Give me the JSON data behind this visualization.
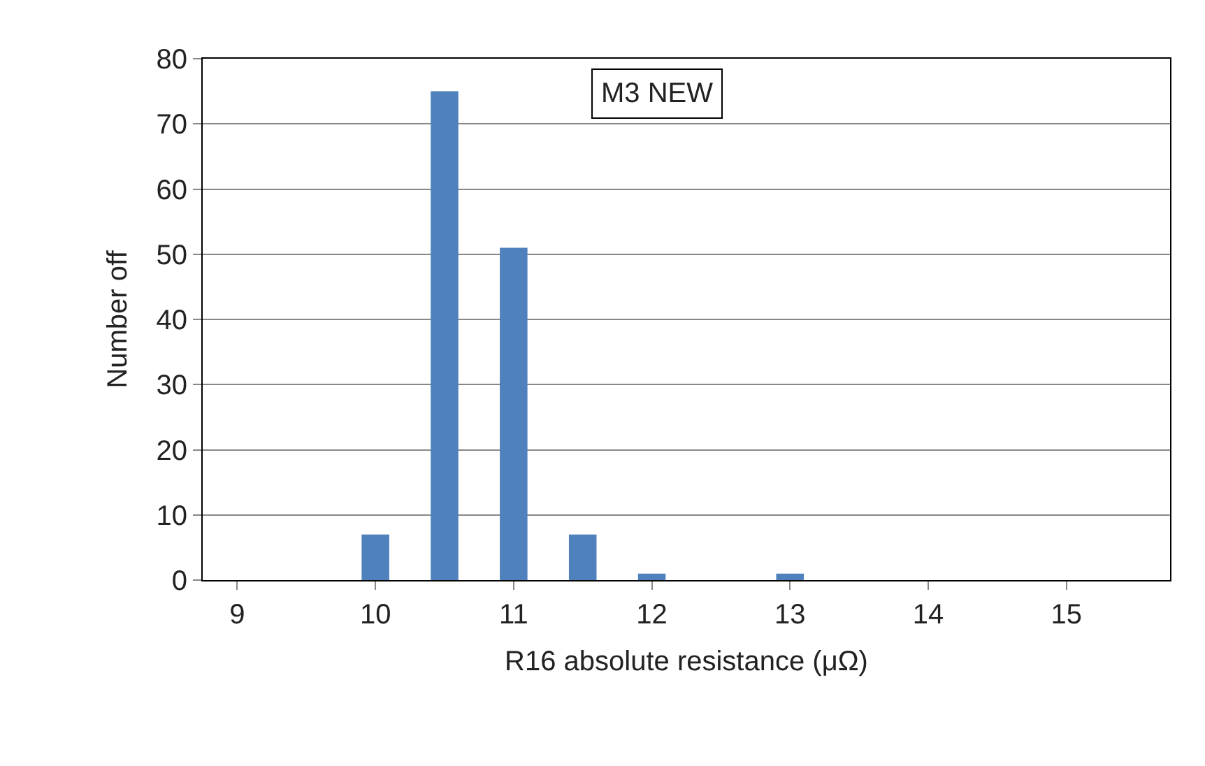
{
  "chart_data": {
    "type": "bar",
    "xlabel": "R16 absolute resistance (μΩ)",
    "ylabel": "Number off",
    "categories": [
      "9",
      null,
      "10",
      null,
      "11",
      null,
      "12",
      null,
      "13",
      null,
      "14",
      null,
      "15",
      null
    ],
    "values": [
      0,
      0,
      7,
      75,
      51,
      7,
      1,
      0,
      1,
      0,
      0,
      0,
      0,
      0
    ],
    "color": "#4f81bd",
    "ylim": [
      0,
      80
    ],
    "yticks": [
      0,
      10,
      20,
      30,
      40,
      50,
      60,
      70,
      80
    ],
    "grid": "y",
    "annotations": [
      "M3 NEW"
    ]
  }
}
